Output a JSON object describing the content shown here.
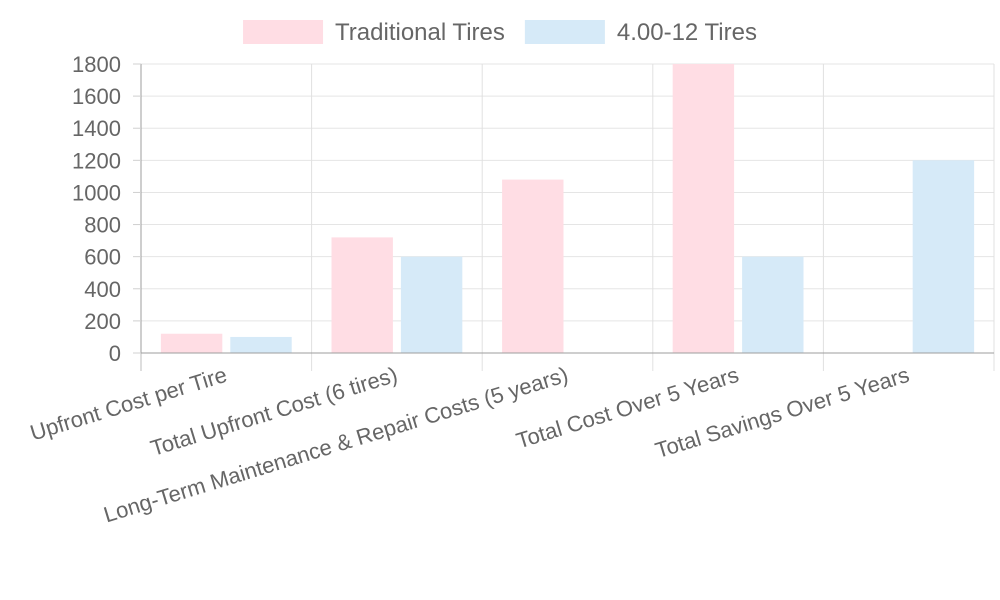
{
  "chart_data": {
    "type": "bar",
    "categories": [
      "Upfront Cost per Tire",
      "Total Upfront Cost (6 tires)",
      "Long-Term Maintenance & Repair Costs (5 years)",
      "Total Cost Over 5 Years",
      "Total Savings Over 5 Years"
    ],
    "series": [
      {
        "name": "Traditional Tires",
        "values": [
          120,
          720,
          1080,
          1800,
          0
        ],
        "color": "#ffdde4",
        "legend_color": "#ffdde4"
      },
      {
        "name": "4.00-12 Tires",
        "values": [
          100,
          600,
          0,
          600,
          1200
        ],
        "color": "#d6eaf8",
        "legend_color": "#d6eaf8"
      }
    ],
    "ylim": [
      0,
      1800
    ],
    "yticks": [
      0,
      200,
      400,
      600,
      800,
      1000,
      1200,
      1400,
      1600,
      1800
    ],
    "grid": true,
    "legend_position": "top",
    "title": "",
    "xlabel": "",
    "ylabel": ""
  }
}
